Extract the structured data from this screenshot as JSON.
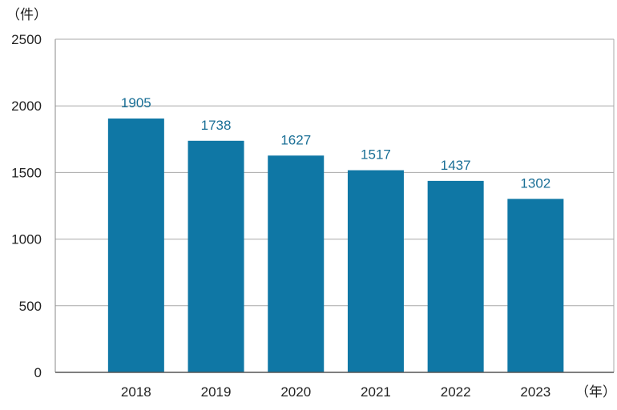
{
  "chart_data": {
    "type": "bar",
    "categories": [
      "2018",
      "2019",
      "2020",
      "2021",
      "2022",
      "2023"
    ],
    "values": [
      1905,
      1738,
      1627,
      1517,
      1437,
      1302
    ],
    "y_unit": "（件）",
    "x_unit": "（年）",
    "ylim": [
      0,
      2500
    ],
    "yticks": [
      "0",
      "500",
      "1000",
      "1500",
      "2000",
      "2500"
    ],
    "grid": true,
    "bar_color": "#0f77a5",
    "label_color": "#1a6f96"
  }
}
